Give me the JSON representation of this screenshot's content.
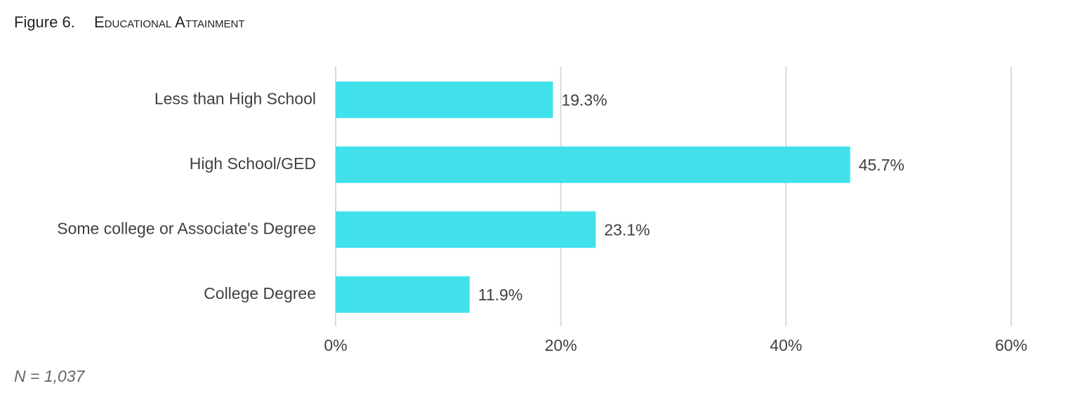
{
  "chart_data": {
    "type": "hbar",
    "figure_label": "Figure 6.",
    "title": "Educational Attainment",
    "categories": [
      "Less than High School",
      "High School/GED",
      "Some college or Associate's Degree",
      "College Degree"
    ],
    "values": [
      19.3,
      45.7,
      23.1,
      11.9
    ],
    "value_labels": [
      "19.3%",
      "45.7%",
      "23.1%",
      "11.9%"
    ],
    "color": "#41e1ec",
    "xlim": [
      0,
      60
    ],
    "xticks": [
      {
        "value": 0,
        "label": "0%"
      },
      {
        "value": 20,
        "label": "20%"
      },
      {
        "value": 40,
        "label": "40%"
      },
      {
        "value": 60,
        "label": "60%"
      }
    ],
    "grid": true,
    "note": "N = 1,037"
  }
}
